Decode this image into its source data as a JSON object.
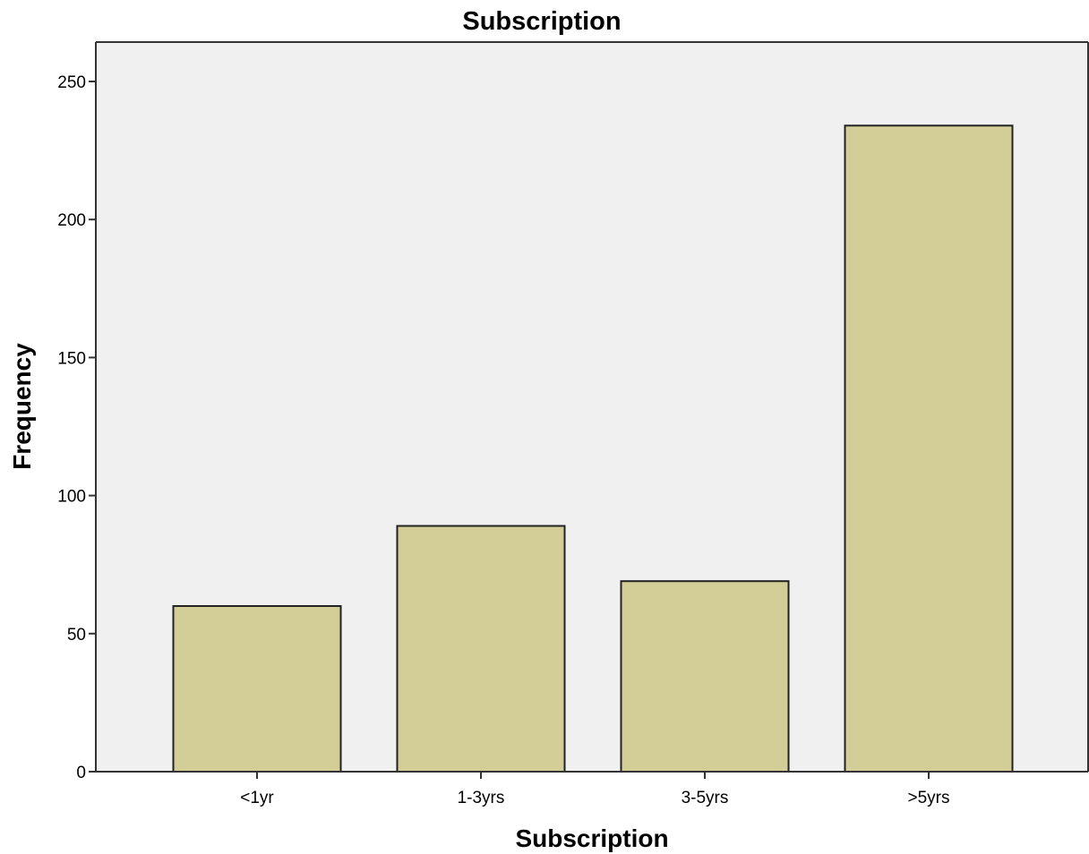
{
  "chart_data": {
    "type": "bar",
    "title": "Subscription",
    "xlabel": "Subscription",
    "ylabel": "Frequency",
    "categories": [
      "<1yr",
      "1-3yrs",
      "3-5yrs",
      ">5yrs"
    ],
    "values": [
      60,
      89,
      69,
      234
    ],
    "ylim": [
      0,
      250
    ],
    "yticks": [
      0,
      50,
      100,
      150,
      200,
      250
    ],
    "grid": false,
    "legend": "none",
    "colors": {
      "bar_fill": "#D3CE97",
      "bar_stroke": "#222222",
      "plot_background": "#F0F0F0",
      "axis": "#333333"
    }
  }
}
